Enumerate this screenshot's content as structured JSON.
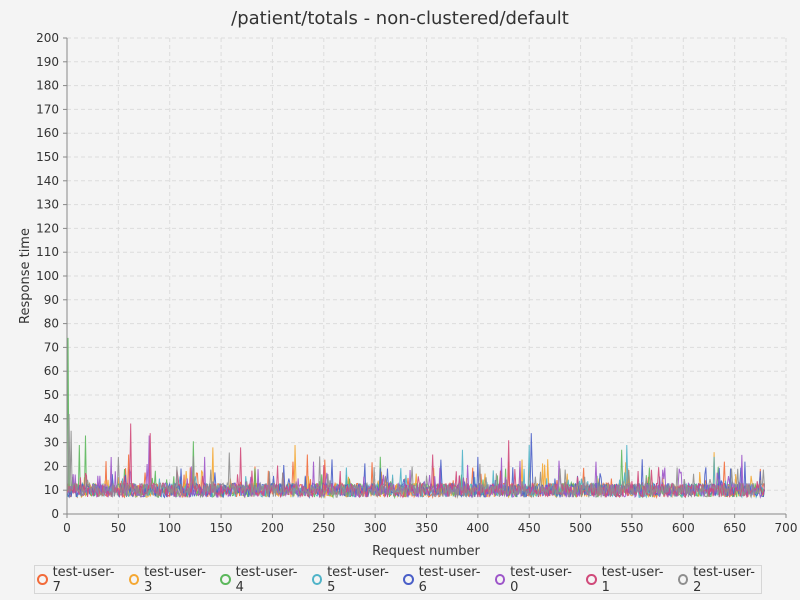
{
  "chart_data": {
    "type": "line",
    "title": "/patient/totals - non-clustered/default",
    "xlabel": "Request number",
    "ylabel": "Response time",
    "xlim": [
      0,
      700
    ],
    "ylim": [
      0,
      200
    ],
    "x_ticks": [
      0,
      50,
      100,
      150,
      200,
      250,
      300,
      350,
      400,
      450,
      500,
      550,
      600,
      650,
      700
    ],
    "y_ticks": [
      0,
      10,
      20,
      30,
      40,
      50,
      60,
      70,
      80,
      90,
      100,
      110,
      120,
      130,
      140,
      150,
      160,
      170,
      180,
      190,
      200
    ],
    "grid": true,
    "legend_position": "bottom",
    "series": [
      {
        "name": "test-user-7",
        "color": "#f26b3a",
        "n_points": 680,
        "baseline": 10,
        "spikes": [
          [
            60,
            25
          ],
          [
            220,
            22
          ],
          [
            430,
            22
          ],
          [
            640,
            22
          ]
        ]
      },
      {
        "name": "test-user-3",
        "color": "#f4a732",
        "n_points": 680,
        "baseline": 10,
        "spikes": [
          [
            142,
            28
          ],
          [
            222,
            29
          ],
          [
            468,
            23
          ],
          [
            630,
            26
          ]
        ]
      },
      {
        "name": "test-user-4",
        "color": "#5cb85c",
        "n_points": 680,
        "baseline": 10,
        "spikes": [
          [
            1,
            74
          ],
          [
            18,
            33
          ],
          [
            12,
            29
          ],
          [
            540,
            27
          ]
        ]
      },
      {
        "name": "test-user-5",
        "color": "#4fb3c8",
        "n_points": 680,
        "baseline": 10,
        "spikes": [
          [
            385,
            27
          ],
          [
            450,
            29
          ],
          [
            545,
            29
          ],
          [
            630,
            24
          ]
        ]
      },
      {
        "name": "test-user-6",
        "color": "#4a5fc8",
        "n_points": 680,
        "baseline": 10,
        "spikes": [
          [
            452,
            34
          ],
          [
            400,
            24
          ],
          [
            560,
            23
          ],
          [
            660,
            22
          ]
        ]
      },
      {
        "name": "test-user-0",
        "color": "#9d55c9",
        "n_points": 680,
        "baseline": 10,
        "spikes": [
          [
            80,
            33
          ],
          [
            134,
            24
          ],
          [
            240,
            22
          ],
          [
            515,
            22
          ]
        ]
      },
      {
        "name": "test-user-1",
        "color": "#d04a7a",
        "n_points": 680,
        "baseline": 10,
        "spikes": [
          [
            62,
            38
          ],
          [
            81,
            34
          ],
          [
            169,
            28
          ],
          [
            356,
            25
          ],
          [
            430,
            31
          ]
        ]
      },
      {
        "name": "test-user-2",
        "color": "#8e8e8e",
        "n_points": 680,
        "baseline": 10,
        "spikes": [
          [
            2,
            42
          ],
          [
            4,
            35
          ],
          [
            50,
            24
          ],
          [
            310,
            16
          ]
        ]
      }
    ]
  }
}
